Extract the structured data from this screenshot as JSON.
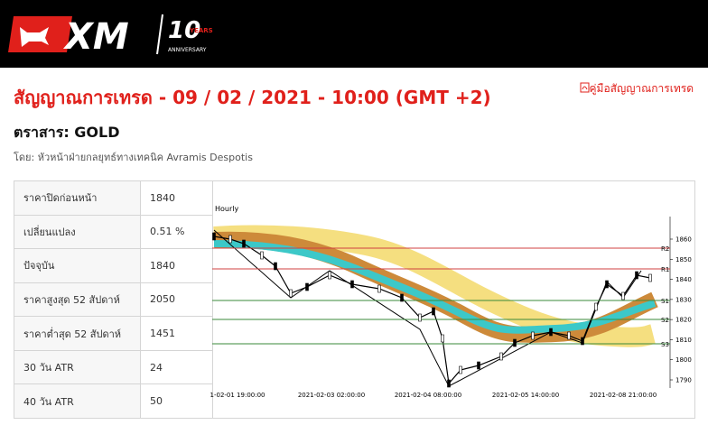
{
  "logo": {
    "brand": "XM",
    "number": "10",
    "years": "YEARS",
    "anniversary": "ANNIVERSARY"
  },
  "header": {
    "title": "สัญญาณการเทรด - 09 / 02 / 2021 - 10:00 (GMT +2)",
    "guide_link": "คู่มือสัญญาณการเทรด"
  },
  "instrument": "ตราสาร: GOLD",
  "author": "โดย: หัวหน้าฝ่ายกลยุทธ์ทางเทคนิค Avramis Despotis",
  "table": {
    "rows": [
      [
        "ราคาปิดก่อนหน้า",
        "1840"
      ],
      [
        "เปลี่ยนแปลง",
        "0.51 %"
      ],
      [
        "ปัจจุบัน",
        "1840"
      ],
      [
        "ราคาสูงสุด 52 สัปดาห์",
        "2050"
      ],
      [
        "ราคาต่ำสุด 52 สัปดาห์",
        "1451"
      ],
      [
        "30 วัน ATR",
        "24"
      ],
      [
        "40 วัน ATR",
        "50"
      ]
    ]
  },
  "chart_image": {
    "timeframe": "Hourly",
    "yticks": [
      1860,
      1850,
      1840,
      1830,
      1820,
      1810,
      1800,
      1790
    ],
    "xticks": [
      "1-02-01 19:00:00",
      "2021-02-03 02:00:00",
      "2021-02-04 08:00:00",
      "2021-02-05 14:00:00",
      "2021-02-08 21:00:00"
    ],
    "levels": [
      "R2",
      "R1",
      "S1",
      "S2",
      "S3"
    ]
  }
}
